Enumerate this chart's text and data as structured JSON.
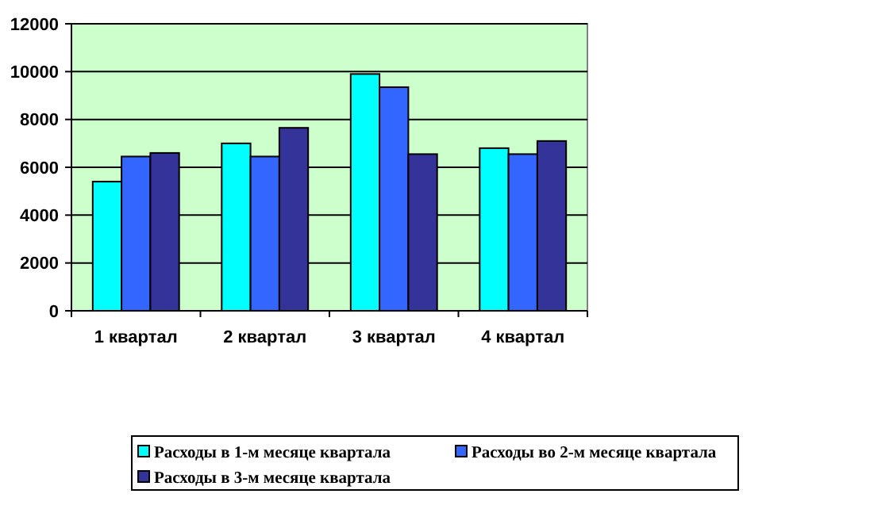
{
  "chart_data": {
    "type": "bar",
    "categories": [
      "1 квартал",
      "2 квартал",
      "3 квартал",
      "4 квартал"
    ],
    "series": [
      {
        "name": "Расходы  в 1-м месяце квартала",
        "color": "#00ffff",
        "values": [
          5400,
          7000,
          9900,
          6800
        ]
      },
      {
        "name": "Расходы  во 2-м месяце квартала",
        "color": "#3366ff",
        "values": [
          6450,
          6450,
          9350,
          6550
        ]
      },
      {
        "name": "Расходы  в 3-м месяце квартала",
        "color": "#333399",
        "values": [
          6600,
          7650,
          6550,
          7100
        ]
      }
    ],
    "ylim": [
      0,
      12000
    ],
    "yticks": [
      0,
      2000,
      4000,
      6000,
      8000,
      10000,
      12000
    ],
    "grid": "y",
    "legend": "bottom"
  }
}
